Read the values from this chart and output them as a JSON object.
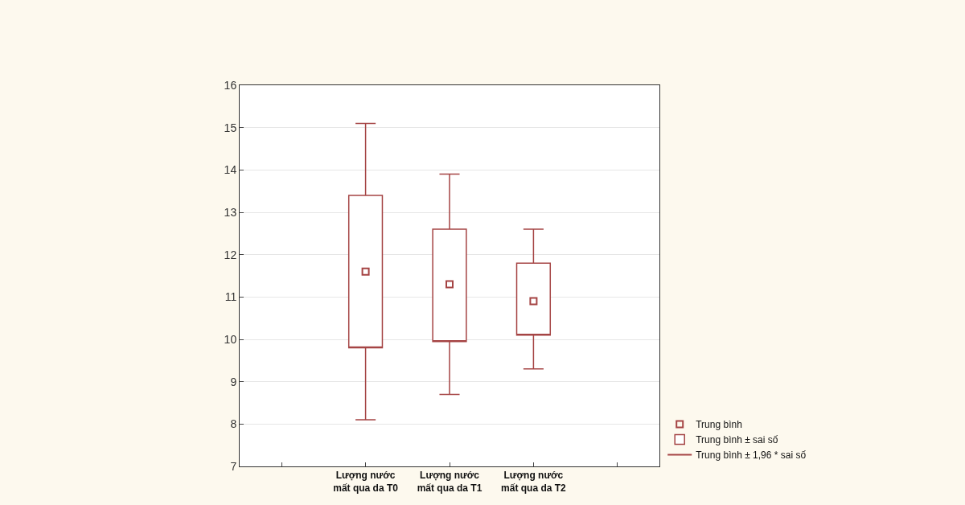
{
  "chart_data": {
    "type": "box",
    "categories": [
      null,
      "Lượng nước mất qua da T0",
      "Lượng nước mất qua da T1",
      "Lượng nước mất qua da T2",
      null
    ],
    "boxes": [
      null,
      {
        "low": 8.1,
        "q1": 9.8,
        "mean": 11.6,
        "q3": 13.4,
        "high": 15.1
      },
      {
        "low": 8.7,
        "q1": 9.95,
        "mean": 11.3,
        "q3": 12.6,
        "high": 13.9
      },
      {
        "low": 9.3,
        "q1": 10.1,
        "mean": 10.9,
        "q3": 11.8,
        "high": 12.6
      },
      null
    ],
    "color": "#a54444",
    "ylim": [
      7,
      16
    ],
    "yticks": [
      7,
      8,
      9,
      10,
      11,
      12,
      13,
      14,
      15,
      16
    ],
    "grid": "y",
    "marker": "square",
    "annotations": [
      "Trung bình",
      "Trung bình ± sai số",
      "Trung bình ± 1,96 * sai số"
    ]
  }
}
